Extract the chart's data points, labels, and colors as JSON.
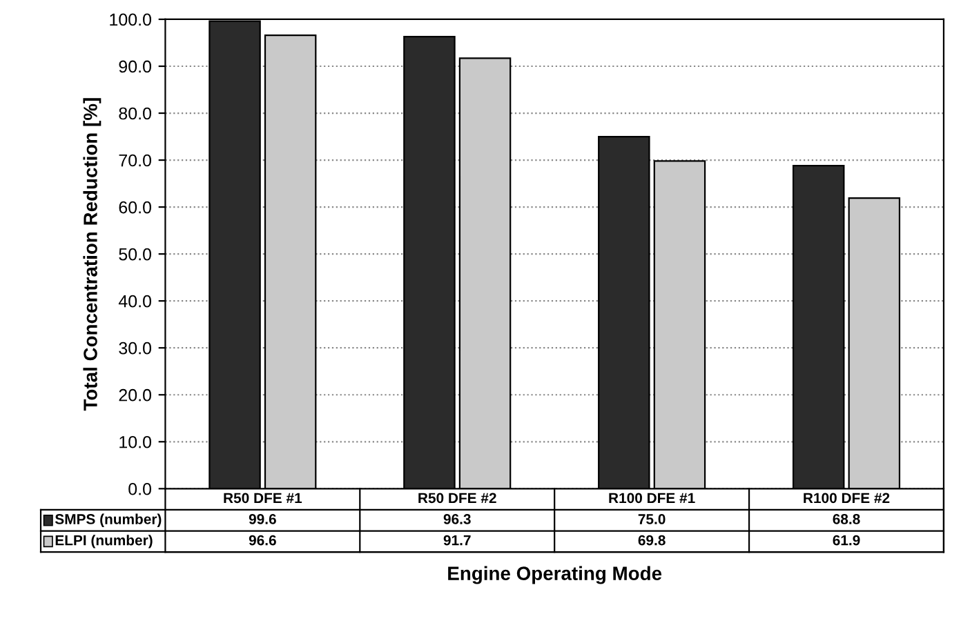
{
  "chart_data": {
    "type": "bar",
    "categories": [
      "R50 DFE #1",
      "R50 DFE #2",
      "R100 DFE #1",
      "R100 DFE #2"
    ],
    "series": [
      {
        "name": "SMPS (number)",
        "color": "#2b2b2b",
        "values": [
          99.6,
          96.3,
          75.0,
          68.8
        ],
        "value_labels": [
          "99.6",
          "96.3",
          "75.0",
          "68.8"
        ]
      },
      {
        "name": "ELPI (number)",
        "color": "#c9c9c9",
        "values": [
          96.6,
          91.7,
          69.8,
          61.9
        ],
        "value_labels": [
          "96.6",
          "91.7",
          "69.8",
          "61.9"
        ]
      }
    ],
    "ylabel": "Total Concentration Reduction [%]",
    "xlabel": "Engine Operating Mode",
    "ylim": [
      0,
      100
    ],
    "yticks": [
      {
        "value": 0,
        "label": "0.0"
      },
      {
        "value": 10,
        "label": "10.0"
      },
      {
        "value": 20,
        "label": "20.0"
      },
      {
        "value": 30,
        "label": "30.0"
      },
      {
        "value": 40,
        "label": "40.0"
      },
      {
        "value": 50,
        "label": "50.0"
      },
      {
        "value": 60,
        "label": "60.0"
      },
      {
        "value": 70,
        "label": "70.0"
      },
      {
        "value": 80,
        "label": "80.0"
      },
      {
        "value": 90,
        "label": "90.0"
      },
      {
        "value": 100,
        "label": "100.0"
      }
    ],
    "grid": "y",
    "legend": "bottom"
  }
}
